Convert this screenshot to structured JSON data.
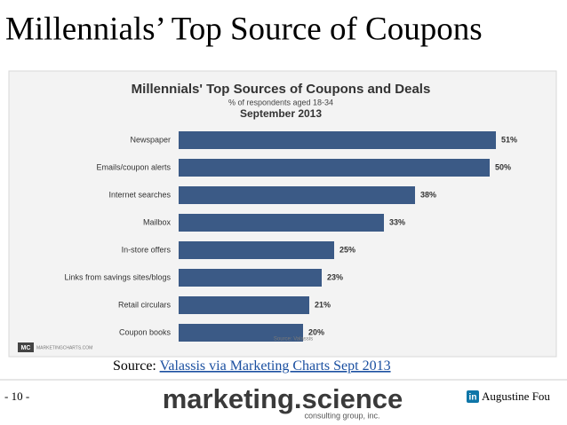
{
  "slide_title": "Millennials’ Top Source of Coupons",
  "chart_data": {
    "type": "bar",
    "orientation": "horizontal",
    "title": "Millennials' Top Sources of Coupons and Deals",
    "subtitle": "% of respondents aged 18-34",
    "date": "September 2013",
    "categories": [
      "Newspaper",
      "Emails/coupon alerts",
      "Internet searches",
      "Mailbox",
      "In-store offers",
      "Links from savings sites/blogs",
      "Retail circulars",
      "Coupon books"
    ],
    "values": [
      51,
      50,
      38,
      33,
      25,
      23,
      21,
      20
    ],
    "value_labels": [
      "51%",
      "50%",
      "38%",
      "33%",
      "25%",
      "23%",
      "21%",
      "20%"
    ],
    "color": "#3b5a86",
    "source": "Source: Valassis",
    "logo_mark": "MC",
    "logo_text": "MARKETINGCHARTS.COM"
  },
  "source_prefix": "Source:",
  "source_link": "Valassis via Marketing Charts Sept 2013",
  "footer": {
    "page": "- 10 -",
    "brand": "marketing.science",
    "brand_tagline": "consulting group, inc.",
    "linkedin": "in",
    "author": "Augustine Fou"
  }
}
